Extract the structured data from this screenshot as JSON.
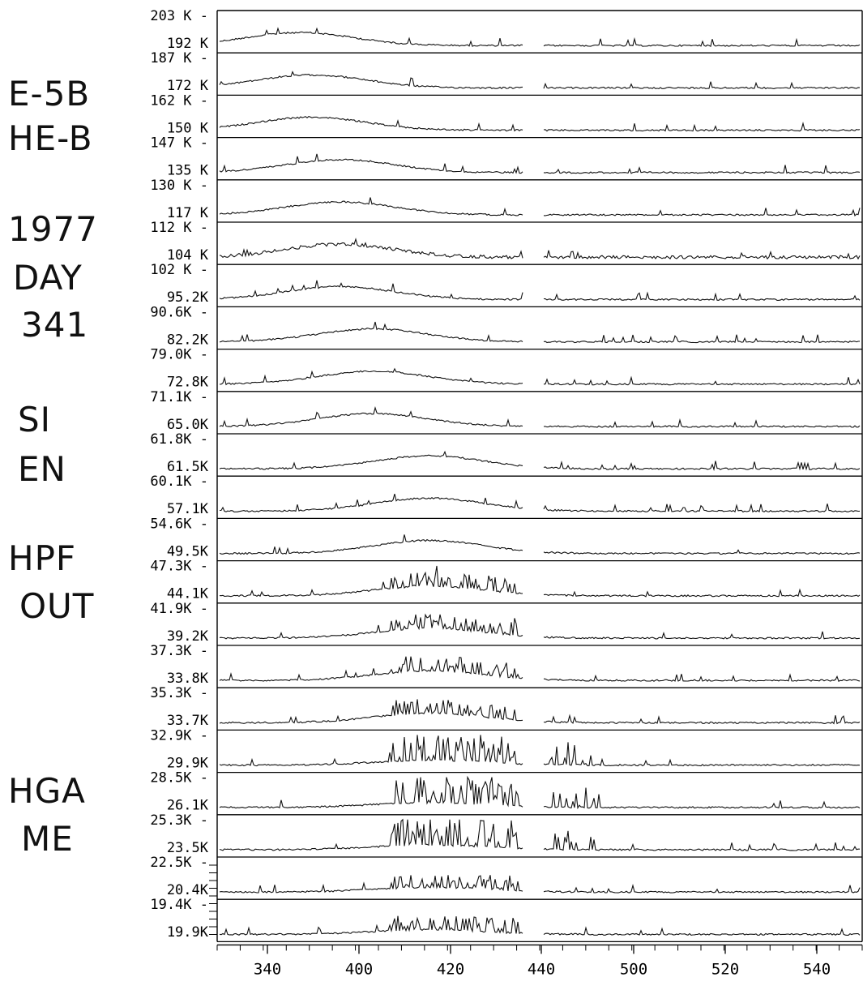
{
  "side_labels": {
    "instrument": [
      "E-5B",
      "HE-B"
    ],
    "date": [
      "1977",
      "DAY",
      "341"
    ],
    "mode": [
      "SI",
      "EN"
    ],
    "filter": [
      "HPF",
      "OUT"
    ],
    "antenna": [
      "HGA",
      "ME"
    ]
  },
  "chart_data": {
    "type": "line",
    "title": "",
    "xlabel": "",
    "ylabel": "",
    "x_tick_labels": [
      "340",
      "400",
      "420",
      "440",
      "500",
      "520",
      "540"
    ],
    "grid": false,
    "legend": "none",
    "data_gap": "between tick 420 and tick 440",
    "panels": [
      {
        "top_label": "203 K",
        "level_label": "192 K",
        "hump_peak_position": "340",
        "features": "smooth hump, spiky right trace"
      },
      {
        "top_label": "187 K",
        "level_label": "172 K",
        "hump_peak_position": "340-400",
        "features": "smooth hump"
      },
      {
        "top_label": "162 K",
        "level_label": "150 K",
        "hump_peak_position": "340-400",
        "features": "smooth hump"
      },
      {
        "top_label": "147 K",
        "level_label": "135 K",
        "hump_peak_position": "400",
        "features": "smooth hump"
      },
      {
        "top_label": "130 K",
        "level_label": "117 K",
        "hump_peak_position": "400",
        "features": "smooth hump"
      },
      {
        "top_label": "112 K",
        "level_label": "104 K",
        "hump_peak_position": "400",
        "features": "smooth hump, dense noise"
      },
      {
        "top_label": "102 K",
        "level_label": "95.2K",
        "hump_peak_position": "400",
        "features": "smooth hump"
      },
      {
        "top_label": "90.6K",
        "level_label": "82.2K",
        "hump_peak_position": "400-420",
        "features": "smooth hump"
      },
      {
        "top_label": "79.0K",
        "level_label": "72.8K",
        "hump_peak_position": "400-420",
        "features": "smooth hump"
      },
      {
        "top_label": "71.1K",
        "level_label": "65.0K",
        "hump_peak_position": "400-420",
        "features": "smooth hump"
      },
      {
        "top_label": "61.8K",
        "level_label": "61.5K",
        "hump_peak_position": "420",
        "features": "smooth hump"
      },
      {
        "top_label": "60.1K",
        "level_label": "57.1K",
        "hump_peak_position": "420",
        "features": "smooth hump, spike near 520"
      },
      {
        "top_label": "54.6K",
        "level_label": "49.5K",
        "hump_peak_position": "420",
        "features": "smooth hump"
      },
      {
        "top_label": "47.3K",
        "level_label": "44.1K",
        "hump_peak_position": "420",
        "features": "hump with bursts"
      },
      {
        "top_label": "41.9K",
        "level_label": "39.2K",
        "hump_peak_position": "420",
        "features": "bursts"
      },
      {
        "top_label": "37.3K",
        "level_label": "33.8K",
        "hump_peak_position": "420",
        "features": "bursts"
      },
      {
        "top_label": "35.3K",
        "level_label": "33.7K",
        "hump_peak_position": "420",
        "features": "bursts"
      },
      {
        "top_label": "32.9K",
        "level_label": "29.9K",
        "hump_peak_position": "420",
        "features": "strong bursts"
      },
      {
        "top_label": "28.5K",
        "level_label": "26.1K",
        "hump_peak_position": "420",
        "features": "strong bursts"
      },
      {
        "top_label": "25.3K",
        "level_label": "23.5K",
        "hump_peak_position": "420",
        "features": "strong bursts"
      },
      {
        "top_label": "22.5K",
        "level_label": "20.4K",
        "hump_peak_position": "420",
        "features": "bursts"
      },
      {
        "top_label": "19.4K",
        "level_label": "19.9K",
        "hump_peak_position": "420",
        "features": "bursts"
      }
    ]
  }
}
